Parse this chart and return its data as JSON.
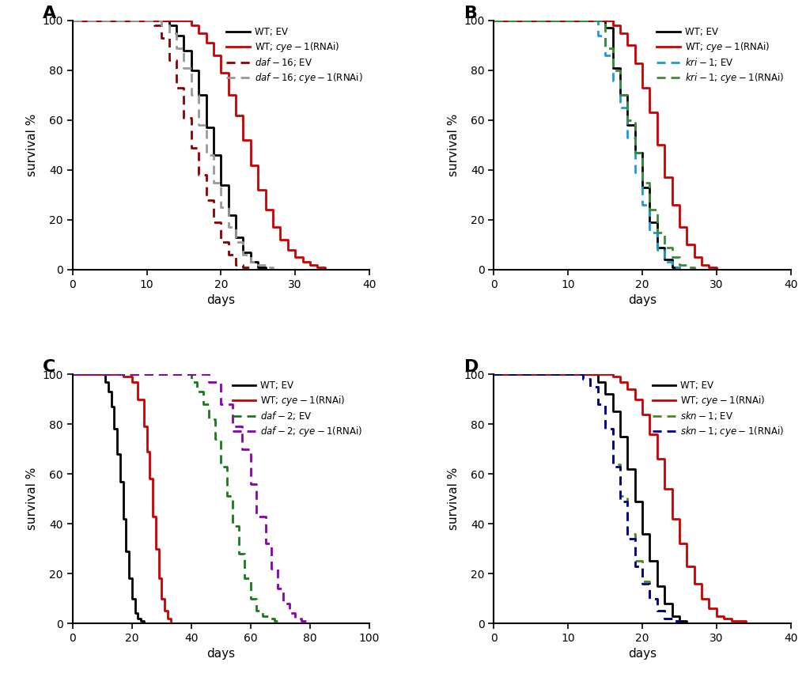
{
  "figure_bg": "#ffffff",
  "linewidth": 2.0,
  "panels": [
    {
      "title": "A",
      "xlim": [
        0,
        40
      ],
      "ylim": [
        0,
        100
      ],
      "xlabel": "days",
      "ylabel": "survival %",
      "xticks": [
        0,
        10,
        20,
        30,
        40
      ],
      "yticks": [
        0,
        20,
        40,
        60,
        80,
        100
      ],
      "curves": [
        {
          "label": "WT; EV",
          "label_parts": [
            [
              "WT; EV",
              false
            ]
          ],
          "color": "#000000",
          "linestyle": "solid",
          "x": [
            0,
            12,
            13,
            14,
            15,
            16,
            17,
            18,
            19,
            20,
            21,
            22,
            23,
            24,
            25,
            26
          ],
          "y": [
            100,
            100,
            98,
            94,
            88,
            80,
            70,
            57,
            46,
            34,
            22,
            13,
            7,
            3,
            1,
            0
          ]
        },
        {
          "label": "WT; cye-1(RNAi)",
          "label_parts": [
            [
              "WT; ",
              false
            ],
            [
              "cye-1",
              true
            ],
            [
              "(RNAi)",
              false
            ]
          ],
          "color": "#cc0000",
          "linestyle": "solid",
          "x": [
            0,
            14,
            16,
            17,
            18,
            19,
            20,
            21,
            22,
            23,
            24,
            25,
            26,
            27,
            28,
            29,
            30,
            31,
            32,
            33,
            34,
            38
          ],
          "y": [
            100,
            100,
            98,
            95,
            91,
            86,
            79,
            70,
            62,
            52,
            42,
            32,
            24,
            17,
            12,
            8,
            5,
            3,
            2,
            1,
            0,
            0
          ]
        },
        {
          "label": "daf-16; EV",
          "label_parts": [
            [
              "daf-16",
              true
            ],
            [
              "; EV",
              false
            ]
          ],
          "color": "#8b0000",
          "linestyle": "dashed",
          "x": [
            0,
            10,
            11,
            12,
            13,
            14,
            15,
            16,
            17,
            18,
            19,
            20,
            21,
            22,
            23,
            24
          ],
          "y": [
            100,
            100,
            98,
            93,
            84,
            73,
            61,
            49,
            38,
            28,
            19,
            11,
            6,
            2,
            1,
            0
          ]
        },
        {
          "label": "daf-16; cye-1(RNAi)",
          "label_parts": [
            [
              "daf-16",
              true
            ],
            [
              "; ",
              false
            ],
            [
              "cye-1",
              true
            ],
            [
              "(RNAi)",
              false
            ]
          ],
          "color": "#999999",
          "linestyle": "dashed",
          "x": [
            0,
            11,
            12,
            13,
            14,
            15,
            16,
            17,
            18,
            19,
            20,
            21,
            22,
            23,
            24,
            25,
            26,
            27,
            28
          ],
          "y": [
            100,
            100,
            98,
            95,
            89,
            81,
            70,
            58,
            46,
            35,
            25,
            17,
            11,
            6,
            3,
            2,
            1,
            0,
            0
          ]
        }
      ]
    },
    {
      "title": "B",
      "xlim": [
        0,
        40
      ],
      "ylim": [
        0,
        100
      ],
      "xlabel": "days",
      "ylabel": "survival %",
      "xticks": [
        0,
        10,
        20,
        30,
        40
      ],
      "yticks": [
        0,
        20,
        40,
        60,
        80,
        100
      ],
      "curves": [
        {
          "label": "WT; EV",
          "label_parts": [
            [
              "WT; EV",
              false
            ]
          ],
          "color": "#000000",
          "linestyle": "solid",
          "x": [
            0,
            14,
            15,
            16,
            17,
            18,
            19,
            20,
            21,
            22,
            23,
            24,
            25,
            26
          ],
          "y": [
            100,
            100,
            97,
            81,
            70,
            58,
            47,
            33,
            19,
            9,
            4,
            1,
            0,
            0
          ]
        },
        {
          "label": "WT; cye-1(RNAi)",
          "label_parts": [
            [
              "WT; ",
              false
            ],
            [
              "cye-1",
              true
            ],
            [
              "(RNAi)",
              false
            ]
          ],
          "color": "#cc0000",
          "linestyle": "solid",
          "x": [
            0,
            14,
            16,
            17,
            18,
            19,
            20,
            21,
            22,
            23,
            24,
            25,
            26,
            27,
            28,
            29,
            30,
            31,
            32,
            33
          ],
          "y": [
            100,
            100,
            98,
            95,
            90,
            83,
            73,
            63,
            50,
            37,
            26,
            17,
            10,
            5,
            2,
            1,
            0,
            0,
            0,
            0
          ]
        },
        {
          "label": "kri-1; EV",
          "label_parts": [
            [
              "kri-1",
              true
            ],
            [
              "; EV",
              false
            ]
          ],
          "color": "#1a9cd8",
          "linestyle": "dashed",
          "x": [
            0,
            13,
            14,
            15,
            16,
            17,
            18,
            19,
            20,
            21,
            22,
            23,
            24,
            25,
            26
          ],
          "y": [
            100,
            100,
            94,
            86,
            76,
            65,
            53,
            39,
            26,
            15,
            8,
            3,
            1,
            0,
            0
          ]
        },
        {
          "label": "kri-1; cye-1(RNAi)",
          "label_parts": [
            [
              "kri-1",
              true
            ],
            [
              "; ",
              false
            ],
            [
              "cye-1",
              true
            ],
            [
              "(RNAi)",
              false
            ]
          ],
          "color": "#3a8c3a",
          "linestyle": "dashed",
          "x": [
            0,
            14,
            15,
            16,
            17,
            18,
            19,
            20,
            21,
            22,
            23,
            24,
            25,
            26,
            27,
            28,
            29,
            30,
            31
          ],
          "y": [
            100,
            100,
            89,
            80,
            70,
            60,
            47,
            35,
            24,
            15,
            9,
            5,
            2,
            1,
            0,
            0,
            0,
            0,
            0
          ]
        }
      ]
    },
    {
      "title": "C",
      "xlim": [
        0,
        100
      ],
      "ylim": [
        0,
        100
      ],
      "xlabel": "days",
      "ylabel": "survival %",
      "xticks": [
        0,
        20,
        40,
        60,
        80,
        100
      ],
      "yticks": [
        0,
        20,
        40,
        60,
        80,
        100
      ],
      "curves": [
        {
          "label": "WT; EV",
          "label_parts": [
            [
              "WT; EV",
              false
            ]
          ],
          "color": "#000000",
          "linestyle": "solid",
          "x": [
            0,
            10,
            11,
            12,
            13,
            14,
            15,
            16,
            17,
            18,
            19,
            20,
            21,
            22,
            23,
            24,
            25
          ],
          "y": [
            100,
            100,
            97,
            93,
            87,
            78,
            68,
            57,
            42,
            29,
            18,
            10,
            4,
            2,
            1,
            0,
            0
          ]
        },
        {
          "label": "WT; cye-1(RNAi)",
          "label_parts": [
            [
              "WT; ",
              false
            ],
            [
              "cye-1",
              true
            ],
            [
              "(RNAi)",
              false
            ]
          ],
          "color": "#cc0000",
          "linestyle": "solid",
          "x": [
            0,
            14,
            17,
            20,
            22,
            24,
            25,
            26,
            27,
            28,
            29,
            30,
            31,
            32,
            33
          ],
          "y": [
            100,
            100,
            99,
            97,
            90,
            79,
            69,
            58,
            43,
            30,
            18,
            10,
            5,
            2,
            0
          ]
        },
        {
          "label": "daf-2; EV",
          "label_parts": [
            [
              "daf-2",
              true
            ],
            [
              "; EV",
              false
            ]
          ],
          "color": "#1a7a1a",
          "linestyle": "dashed",
          "x": [
            0,
            38,
            40,
            42,
            44,
            46,
            48,
            50,
            52,
            54,
            56,
            58,
            60,
            62,
            64,
            66,
            68,
            70
          ],
          "y": [
            100,
            100,
            97,
            93,
            88,
            82,
            74,
            63,
            51,
            39,
            28,
            18,
            10,
            5,
            3,
            2,
            1,
            0
          ]
        },
        {
          "label": "daf-2; cye-1(RNAi)",
          "label_parts": [
            [
              "daf-2",
              true
            ],
            [
              "; ",
              false
            ],
            [
              "cye-1",
              true
            ],
            [
              "(RNAi)",
              false
            ]
          ],
          "color": "#8b00b0",
          "linestyle": "dashed",
          "x": [
            0,
            42,
            46,
            50,
            54,
            57,
            60,
            62,
            65,
            67,
            69,
            71,
            73,
            75,
            77,
            79
          ],
          "y": [
            100,
            100,
            97,
            88,
            79,
            70,
            56,
            43,
            32,
            22,
            14,
            8,
            4,
            2,
            1,
            0
          ]
        }
      ]
    },
    {
      "title": "D",
      "xlim": [
        0,
        40
      ],
      "ylim": [
        0,
        100
      ],
      "xlabel": "days",
      "ylabel": "survival %",
      "xticks": [
        0,
        10,
        20,
        30,
        40
      ],
      "yticks": [
        0,
        20,
        40,
        60,
        80,
        100
      ],
      "curves": [
        {
          "label": "WT; EV",
          "label_parts": [
            [
              "WT; EV",
              false
            ]
          ],
          "color": "#000000",
          "linestyle": "solid",
          "x": [
            0,
            13,
            14,
            15,
            16,
            17,
            18,
            19,
            20,
            21,
            22,
            23,
            24,
            25,
            26,
            27
          ],
          "y": [
            100,
            100,
            97,
            92,
            85,
            75,
            62,
            49,
            36,
            25,
            15,
            8,
            3,
            1,
            0,
            0
          ]
        },
        {
          "label": "WT; cye-1(RNAi)",
          "label_parts": [
            [
              "WT; ",
              false
            ],
            [
              "cye-1",
              true
            ],
            [
              "(RNAi)",
              false
            ]
          ],
          "color": "#cc0000",
          "linestyle": "solid",
          "x": [
            0,
            14,
            16,
            17,
            18,
            19,
            20,
            21,
            22,
            23,
            24,
            25,
            26,
            27,
            28,
            29,
            30,
            31,
            32,
            33,
            34,
            35,
            36,
            37,
            38
          ],
          "y": [
            100,
            100,
            99,
            97,
            94,
            90,
            84,
            76,
            66,
            54,
            42,
            32,
            23,
            16,
            10,
            6,
            3,
            2,
            1,
            1,
            0,
            0,
            0,
            0,
            0
          ]
        },
        {
          "label": "skn-1; EV",
          "label_parts": [
            [
              "skn-1",
              true
            ],
            [
              "; EV",
              false
            ]
          ],
          "color": "#4a8a20",
          "linestyle": "dashed",
          "x": [
            0,
            11,
            12,
            13,
            14,
            15,
            16,
            17,
            18,
            19,
            20,
            21,
            22,
            23,
            24,
            25
          ],
          "y": [
            100,
            100,
            98,
            95,
            88,
            78,
            64,
            51,
            36,
            25,
            17,
            10,
            5,
            2,
            1,
            0
          ]
        },
        {
          "label": "skn-1; cye-1(RNAi)",
          "label_parts": [
            [
              "skn-1",
              true
            ],
            [
              "; ",
              false
            ],
            [
              "cye-1",
              true
            ],
            [
              "(RNAi)",
              false
            ]
          ],
          "color": "#00008b",
          "linestyle": "dashed",
          "x": [
            0,
            11,
            12,
            13,
            14,
            15,
            16,
            17,
            18,
            19,
            20,
            21,
            22,
            23,
            24,
            25
          ],
          "y": [
            100,
            100,
            98,
            95,
            88,
            78,
            63,
            49,
            34,
            23,
            16,
            10,
            5,
            2,
            1,
            0
          ]
        }
      ]
    }
  ]
}
